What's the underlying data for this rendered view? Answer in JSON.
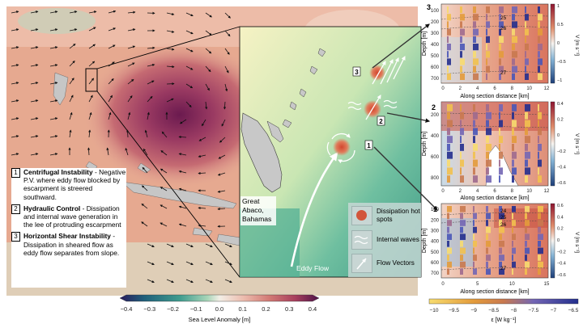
{
  "map": {
    "colorbar": {
      "label": "Sea Level Anomaly [m]",
      "ticks": [
        "−0.4",
        "−0.3",
        "−0.2",
        "−0.1",
        "0.0",
        "0.1",
        "0.2",
        "0.3",
        "0.4"
      ],
      "colors": [
        "#2a1b5c",
        "#1f5e7a",
        "#3f9c8e",
        "#a8d5b8",
        "#f3efe6",
        "#ecbcae",
        "#d27a74",
        "#a83f5d",
        "#4e1348"
      ]
    }
  },
  "inset": {
    "place_label": [
      "Great",
      "Abaco,",
      "Bahamas"
    ],
    "flow_label": "Eddy Flow",
    "markers": [
      "1",
      "2",
      "3"
    ]
  },
  "legend": {
    "items": [
      {
        "num": "1",
        "title": "Centrifugal Instability",
        "text": " - Negative P.V. where eddy flow blocked by escarpment is streered southward."
      },
      {
        "num": "2",
        "title": "Hydraulic Control",
        "text": " - Dissipation and internal wave generation in the lee of protruding escarpment"
      },
      {
        "num": "3",
        "title": "Horizontal Shear Instability",
        "text": " - Dissipation in sheared flow as eddy flow separates from slope."
      }
    ]
  },
  "key": {
    "hotspots": "Dissipation hot spots",
    "waves": "Internal waves",
    "vectors": "Flow Vectors"
  },
  "sections": {
    "ylabel": "Depth [m]",
    "xlabel": "Along section distance [km]",
    "vlabel": "V [m s⁻¹]",
    "panel3": {
      "num": "3",
      "yticks": [
        "100",
        "200",
        "300",
        "400",
        "500",
        "600",
        "700"
      ],
      "xticks": [
        "0",
        "2",
        "4",
        "6",
        "8",
        "10",
        "12"
      ],
      "cticks": [
        "1",
        "0.5",
        "0",
        "−0.5",
        "−1"
      ],
      "contours": [
        "25",
        "26",
        "27"
      ]
    },
    "panel2": {
      "num": "2",
      "yticks": [
        "200",
        "400",
        "600",
        "800"
      ],
      "xticks": [
        "0",
        "2",
        "4",
        "6",
        "8",
        "10",
        "12"
      ],
      "cticks": [
        "0.4",
        "0.2",
        "0",
        "−0.2",
        "−0.4",
        "−0.6"
      ]
    },
    "panel1": {
      "num": "1",
      "yticks": [
        "100",
        "200",
        "300",
        "400",
        "500",
        "600",
        "700"
      ],
      "xticks": [
        "0",
        "5",
        "10",
        "15"
      ],
      "cticks": [
        "0.6",
        "0.4",
        "0.2",
        "0",
        "−0.2",
        "−0.4",
        "−0.6"
      ],
      "contours": [
        "24",
        "25",
        "26",
        "27"
      ]
    },
    "eps": {
      "label": "ε [W kg⁻¹]",
      "ticks": [
        "−10",
        "−9.5",
        "−9",
        "−8.5",
        "−8",
        "−7.5",
        "−7",
        "−6.5"
      ],
      "colors": [
        "#f7dc6f",
        "#f2c14e",
        "#e39b3b",
        "#c9794f",
        "#9f6a8e",
        "#7366b4",
        "#4a57b7",
        "#232f8e"
      ]
    }
  }
}
